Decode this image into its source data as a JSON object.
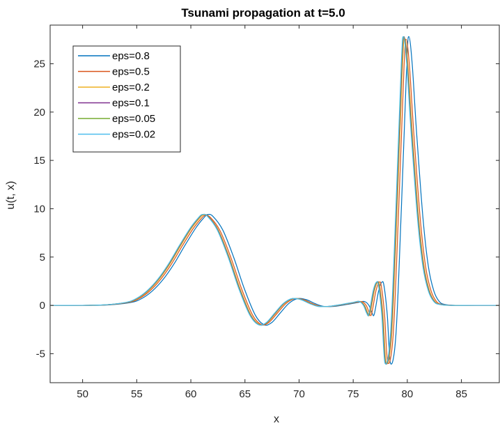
{
  "chart_data": {
    "type": "line",
    "title": "Tsunami propagation at t=5.0",
    "xlabel": "x",
    "ylabel": "u(t, x)",
    "xlim": [
      47,
      88.5
    ],
    "ylim": [
      -8,
      29
    ],
    "xticks": [
      50,
      55,
      60,
      65,
      70,
      75,
      80,
      85
    ],
    "yticks": [
      -5,
      0,
      5,
      10,
      15,
      20,
      25
    ],
    "grid": false,
    "legend_position": "top-left",
    "series": [
      {
        "name": "eps=0.8",
        "color": "#0072BD",
        "shift": 0.45,
        "scale": 1.0,
        "x": [
          47,
          50,
          52,
          54,
          55,
          56,
          57,
          58,
          59,
          60,
          60.7,
          61.1,
          61.6,
          62.5,
          63.5,
          64.5,
          65.5,
          66.3,
          67.0,
          67.8,
          68.6,
          69.4,
          70.2,
          71.0,
          71.8,
          72.8,
          74.0,
          75.0,
          75.6,
          76.0,
          76.3,
          76.5,
          76.9,
          77.2,
          77.4,
          77.7,
          78.0,
          78.5,
          79.0,
          79.5,
          79.7,
          80.0,
          80.4,
          81.0,
          81.5,
          82.0,
          82.5,
          83.0,
          84,
          86,
          88.5
        ],
        "y": [
          0,
          0,
          0.05,
          0.3,
          0.7,
          1.5,
          2.7,
          4.3,
          6.2,
          8.0,
          9.0,
          9.4,
          9.2,
          7.8,
          5.0,
          1.7,
          -1.0,
          -2.0,
          -1.8,
          -0.8,
          0.2,
          0.7,
          0.6,
          0.2,
          -0.1,
          -0.1,
          0.1,
          0.3,
          0.4,
          0.0,
          -0.8,
          -0.9,
          1.5,
          2.4,
          2.0,
          -1.0,
          -6.0,
          -3.0,
          10.0,
          25.0,
          27.8,
          25.0,
          18.0,
          9.0,
          4.0,
          1.5,
          0.4,
          0.1,
          0,
          0,
          0
        ]
      },
      {
        "name": "eps=0.5",
        "color": "#D95319",
        "shift": 0.2,
        "scale": 0.99,
        "x": [
          47,
          50,
          52,
          54,
          55,
          56,
          57,
          58,
          59,
          60,
          60.7,
          61.1,
          61.6,
          62.5,
          63.5,
          64.5,
          65.5,
          66.3,
          67.0,
          67.8,
          68.6,
          69.4,
          70.2,
          71.0,
          71.8,
          72.8,
          74.0,
          75.0,
          75.6,
          76.0,
          76.3,
          76.5,
          76.9,
          77.2,
          77.4,
          77.7,
          78.0,
          78.5,
          79.0,
          79.5,
          79.7,
          80.0,
          80.4,
          81.0,
          81.5,
          82.0,
          82.5,
          83.0,
          84,
          86,
          88.5
        ],
        "y": [
          0,
          0,
          0.05,
          0.3,
          0.7,
          1.5,
          2.7,
          4.3,
          6.2,
          8.0,
          9.0,
          9.4,
          9.2,
          7.8,
          5.0,
          1.7,
          -1.0,
          -2.0,
          -1.8,
          -0.8,
          0.2,
          0.7,
          0.6,
          0.2,
          -0.1,
          -0.1,
          0.1,
          0.3,
          0.4,
          0.0,
          -0.8,
          -0.9,
          1.5,
          2.4,
          2.0,
          -1.0,
          -6.0,
          -3.0,
          10.0,
          25.0,
          27.8,
          25.0,
          18.0,
          9.0,
          4.0,
          1.5,
          0.4,
          0.1,
          0,
          0,
          0
        ]
      },
      {
        "name": "eps=0.2",
        "color": "#EDB120",
        "shift": 0.06,
        "scale": 0.995,
        "x": [
          47,
          50,
          52,
          54,
          55,
          56,
          57,
          58,
          59,
          60,
          60.7,
          61.1,
          61.6,
          62.5,
          63.5,
          64.5,
          65.5,
          66.3,
          67.0,
          67.8,
          68.6,
          69.4,
          70.2,
          71.0,
          71.8,
          72.8,
          74.0,
          75.0,
          75.6,
          76.0,
          76.3,
          76.5,
          76.9,
          77.2,
          77.4,
          77.7,
          78.0,
          78.5,
          79.0,
          79.5,
          79.7,
          80.0,
          80.4,
          81.0,
          81.5,
          82.0,
          82.5,
          83.0,
          84,
          86,
          88.5
        ],
        "y": [
          0,
          0,
          0.05,
          0.3,
          0.7,
          1.5,
          2.7,
          4.3,
          6.2,
          8.0,
          9.0,
          9.4,
          9.2,
          7.8,
          5.0,
          1.7,
          -1.0,
          -2.0,
          -1.8,
          -0.8,
          0.2,
          0.7,
          0.6,
          0.2,
          -0.1,
          -0.1,
          0.1,
          0.3,
          0.4,
          0.0,
          -0.8,
          -0.9,
          1.5,
          2.4,
          2.0,
          -1.0,
          -6.0,
          -3.0,
          10.0,
          25.0,
          27.8,
          25.0,
          18.0,
          9.0,
          4.0,
          1.5,
          0.4,
          0.1,
          0,
          0,
          0
        ]
      },
      {
        "name": "eps=0.1",
        "color": "#7E2F8E",
        "shift": 0.0,
        "scale": 1.0,
        "x": [
          47,
          50,
          52,
          54,
          55,
          56,
          57,
          58,
          59,
          60,
          60.7,
          61.1,
          61.6,
          62.5,
          63.5,
          64.5,
          65.5,
          66.3,
          67.0,
          67.8,
          68.6,
          69.4,
          70.2,
          71.0,
          71.8,
          72.8,
          74.0,
          75.0,
          75.6,
          76.0,
          76.3,
          76.5,
          76.9,
          77.2,
          77.4,
          77.7,
          78.0,
          78.5,
          79.0,
          79.5,
          79.7,
          80.0,
          80.4,
          81.0,
          81.5,
          82.0,
          82.5,
          83.0,
          84,
          86,
          88.5
        ],
        "y": [
          0,
          0,
          0.05,
          0.3,
          0.7,
          1.5,
          2.7,
          4.3,
          6.2,
          8.0,
          9.0,
          9.4,
          9.2,
          7.8,
          5.0,
          1.7,
          -1.0,
          -2.0,
          -1.8,
          -0.8,
          0.2,
          0.7,
          0.6,
          0.2,
          -0.1,
          -0.1,
          0.1,
          0.3,
          0.4,
          0.0,
          -0.8,
          -0.9,
          1.5,
          2.4,
          2.0,
          -1.0,
          -6.0,
          -3.0,
          10.0,
          25.0,
          27.8,
          25.0,
          18.0,
          9.0,
          4.0,
          1.5,
          0.4,
          0.1,
          0,
          0,
          0
        ]
      },
      {
        "name": "eps=0.05",
        "color": "#77AC30",
        "shift": -0.03,
        "scale": 1.0,
        "x": [
          47,
          50,
          52,
          54,
          55,
          56,
          57,
          58,
          59,
          60,
          60.7,
          61.1,
          61.6,
          62.5,
          63.5,
          64.5,
          65.5,
          66.3,
          67.0,
          67.8,
          68.6,
          69.4,
          70.2,
          71.0,
          71.8,
          72.8,
          74.0,
          75.0,
          75.6,
          76.0,
          76.3,
          76.5,
          76.9,
          77.2,
          77.4,
          77.7,
          78.0,
          78.5,
          79.0,
          79.5,
          79.7,
          80.0,
          80.4,
          81.0,
          81.5,
          82.0,
          82.5,
          83.0,
          84,
          86,
          88.5
        ],
        "y": [
          0,
          0,
          0.05,
          0.3,
          0.7,
          1.5,
          2.7,
          4.3,
          6.2,
          8.0,
          9.0,
          9.4,
          9.2,
          7.8,
          5.0,
          1.7,
          -1.0,
          -2.0,
          -1.8,
          -0.8,
          0.2,
          0.7,
          0.6,
          0.2,
          -0.1,
          -0.1,
          0.1,
          0.3,
          0.4,
          0.0,
          -0.8,
          -0.9,
          1.5,
          2.4,
          2.0,
          -1.0,
          -6.0,
          -3.0,
          10.0,
          25.0,
          27.8,
          25.0,
          18.0,
          9.0,
          4.0,
          1.5,
          0.4,
          0.1,
          0,
          0,
          0
        ]
      },
      {
        "name": "eps=0.02",
        "color": "#4DBEEE",
        "shift": -0.06,
        "scale": 1.0,
        "x": [
          47,
          50,
          52,
          54,
          55,
          56,
          57,
          58,
          59,
          60,
          60.7,
          61.1,
          61.6,
          62.5,
          63.5,
          64.5,
          65.5,
          66.3,
          67.0,
          67.8,
          68.6,
          69.4,
          70.2,
          71.0,
          71.8,
          72.8,
          74.0,
          75.0,
          75.6,
          76.0,
          76.3,
          76.5,
          76.9,
          77.2,
          77.4,
          77.7,
          78.0,
          78.5,
          79.0,
          79.5,
          79.7,
          80.0,
          80.4,
          81.0,
          81.5,
          82.0,
          82.5,
          83.0,
          84,
          86,
          88.5
        ],
        "y": [
          0,
          0,
          0.05,
          0.3,
          0.7,
          1.5,
          2.7,
          4.3,
          6.2,
          8.0,
          9.0,
          9.4,
          9.2,
          7.8,
          5.0,
          1.7,
          -1.0,
          -2.0,
          -1.8,
          -0.8,
          0.2,
          0.7,
          0.6,
          0.2,
          -0.1,
          -0.1,
          0.1,
          0.3,
          0.4,
          0.0,
          -0.8,
          -0.9,
          1.5,
          2.4,
          2.0,
          -1.0,
          -6.0,
          -3.0,
          10.0,
          25.0,
          27.8,
          25.0,
          18.0,
          9.0,
          4.0,
          1.5,
          0.4,
          0.1,
          0,
          0,
          0
        ]
      }
    ]
  }
}
